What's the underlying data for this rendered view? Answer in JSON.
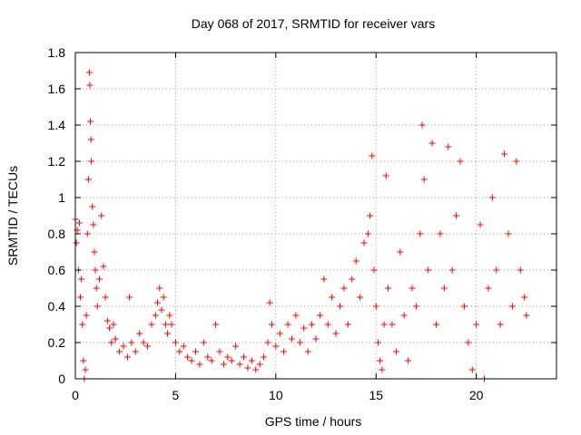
{
  "chart_data": {
    "type": "scatter",
    "title": "Day 068 of 2017, SRMTID for receiver vars",
    "xlabel": "GPS time / hours",
    "ylabel": "SRMTID / TECUs",
    "xlim": [
      0,
      24
    ],
    "ylim": [
      0,
      1.8
    ],
    "xticks": [
      0,
      5,
      10,
      15,
      20
    ],
    "xtick_labels": [
      "0",
      "5",
      "10",
      "15",
      "20"
    ],
    "yticks": [
      0,
      0.2,
      0.4,
      0.6,
      0.8,
      1,
      1.2,
      1.4,
      1.6,
      1.8
    ],
    "ytick_labels": [
      "0",
      "0.2",
      "0.4",
      "0.6",
      "0.8",
      "1",
      "1.2",
      "1.4",
      "1.6",
      "1.8"
    ],
    "grid": true,
    "marker": "plus",
    "color": "#ff0000",
    "series": [
      {
        "name": "SRMTID",
        "points": [
          [
            0.0,
            0.88
          ],
          [
            0.05,
            0.75
          ],
          [
            0.1,
            0.82
          ],
          [
            0.15,
            0.6
          ],
          [
            0.2,
            0.86
          ],
          [
            0.25,
            0.45
          ],
          [
            0.3,
            0.55
          ],
          [
            0.35,
            0.3
          ],
          [
            0.4,
            0.1
          ],
          [
            0.45,
            0.0
          ],
          [
            0.5,
            0.05
          ],
          [
            0.55,
            0.35
          ],
          [
            0.6,
            0.8
          ],
          [
            0.65,
            1.1
          ],
          [
            0.7,
            1.69
          ],
          [
            0.72,
            1.62
          ],
          [
            0.75,
            1.42
          ],
          [
            0.78,
            1.32
          ],
          [
            0.8,
            1.2
          ],
          [
            0.85,
            0.95
          ],
          [
            0.9,
            0.85
          ],
          [
            0.95,
            0.7
          ],
          [
            1.0,
            0.6
          ],
          [
            1.05,
            0.5
          ],
          [
            1.1,
            0.4
          ],
          [
            1.2,
            0.55
          ],
          [
            1.3,
            0.9
          ],
          [
            1.4,
            0.62
          ],
          [
            1.5,
            0.45
          ],
          [
            1.6,
            0.32
          ],
          [
            1.7,
            0.28
          ],
          [
            1.8,
            0.2
          ],
          [
            1.9,
            0.3
          ],
          [
            2.0,
            0.22
          ],
          [
            2.2,
            0.15
          ],
          [
            2.4,
            0.18
          ],
          [
            2.6,
            0.12
          ],
          [
            2.7,
            0.45
          ],
          [
            2.8,
            0.2
          ],
          [
            3.0,
            0.15
          ],
          [
            3.2,
            0.25
          ],
          [
            3.4,
            0.2
          ],
          [
            3.6,
            0.18
          ],
          [
            3.8,
            0.3
          ],
          [
            4.0,
            0.35
          ],
          [
            4.1,
            0.42
          ],
          [
            4.2,
            0.5
          ],
          [
            4.3,
            0.38
          ],
          [
            4.4,
            0.45
          ],
          [
            4.5,
            0.3
          ],
          [
            4.6,
            0.25
          ],
          [
            4.7,
            0.35
          ],
          [
            4.8,
            0.3
          ],
          [
            5.0,
            0.2
          ],
          [
            5.2,
            0.15
          ],
          [
            5.4,
            0.18
          ],
          [
            5.6,
            0.12
          ],
          [
            5.8,
            0.1
          ],
          [
            6.0,
            0.15
          ],
          [
            6.2,
            0.08
          ],
          [
            6.4,
            0.2
          ],
          [
            6.6,
            0.12
          ],
          [
            6.8,
            0.1
          ],
          [
            7.0,
            0.3
          ],
          [
            7.2,
            0.15
          ],
          [
            7.4,
            0.08
          ],
          [
            7.6,
            0.12
          ],
          [
            7.8,
            0.1
          ],
          [
            8.0,
            0.18
          ],
          [
            8.2,
            0.08
          ],
          [
            8.4,
            0.12
          ],
          [
            8.6,
            0.06
          ],
          [
            8.8,
            0.1
          ],
          [
            9.0,
            0.05
          ],
          [
            9.2,
            0.08
          ],
          [
            9.4,
            0.12
          ],
          [
            9.6,
            0.2
          ],
          [
            9.7,
            0.42
          ],
          [
            9.8,
            0.3
          ],
          [
            10.0,
            0.18
          ],
          [
            10.2,
            0.25
          ],
          [
            10.4,
            0.15
          ],
          [
            10.6,
            0.3
          ],
          [
            10.8,
            0.22
          ],
          [
            11.0,
            0.35
          ],
          [
            11.2,
            0.2
          ],
          [
            11.4,
            0.28
          ],
          [
            11.6,
            0.15
          ],
          [
            11.8,
            0.3
          ],
          [
            12.0,
            0.22
          ],
          [
            12.2,
            0.35
          ],
          [
            12.4,
            0.55
          ],
          [
            12.6,
            0.3
          ],
          [
            12.8,
            0.45
          ],
          [
            13.0,
            0.25
          ],
          [
            13.2,
            0.4
          ],
          [
            13.4,
            0.5
          ],
          [
            13.6,
            0.3
          ],
          [
            13.8,
            0.55
          ],
          [
            14.0,
            0.65
          ],
          [
            14.2,
            0.45
          ],
          [
            14.4,
            0.75
          ],
          [
            14.6,
            0.8
          ],
          [
            14.7,
            0.9
          ],
          [
            14.8,
            1.23
          ],
          [
            14.9,
            0.6
          ],
          [
            15.0,
            0.4
          ],
          [
            15.1,
            0.2
          ],
          [
            15.2,
            0.1
          ],
          [
            15.3,
            0.05
          ],
          [
            15.4,
            0.3
          ],
          [
            15.5,
            1.12
          ],
          [
            15.6,
            0.5
          ],
          [
            15.8,
            0.3
          ],
          [
            16.0,
            0.15
          ],
          [
            16.2,
            0.7
          ],
          [
            16.4,
            0.35
          ],
          [
            16.6,
            0.1
          ],
          [
            16.8,
            0.5
          ],
          [
            17.0,
            0.4
          ],
          [
            17.2,
            0.8
          ],
          [
            17.3,
            1.4
          ],
          [
            17.4,
            1.1
          ],
          [
            17.6,
            0.6
          ],
          [
            17.8,
            1.3
          ],
          [
            18.0,
            0.3
          ],
          [
            18.2,
            0.8
          ],
          [
            18.4,
            0.5
          ],
          [
            18.6,
            1.28
          ],
          [
            18.8,
            0.6
          ],
          [
            19.0,
            0.9
          ],
          [
            19.2,
            1.2
          ],
          [
            19.4,
            0.4
          ],
          [
            19.6,
            0.2
          ],
          [
            19.8,
            0.05
          ],
          [
            20.0,
            0.3
          ],
          [
            20.2,
            0.85
          ],
          [
            20.4,
            0.0
          ],
          [
            20.6,
            0.5
          ],
          [
            20.8,
            1.0
          ],
          [
            21.0,
            0.6
          ],
          [
            21.2,
            0.3
          ],
          [
            21.4,
            1.24
          ],
          [
            21.6,
            0.8
          ],
          [
            21.8,
            0.4
          ],
          [
            22.0,
            1.2
          ],
          [
            22.2,
            0.6
          ],
          [
            22.4,
            0.45
          ],
          [
            22.5,
            0.35
          ]
        ]
      }
    ]
  }
}
